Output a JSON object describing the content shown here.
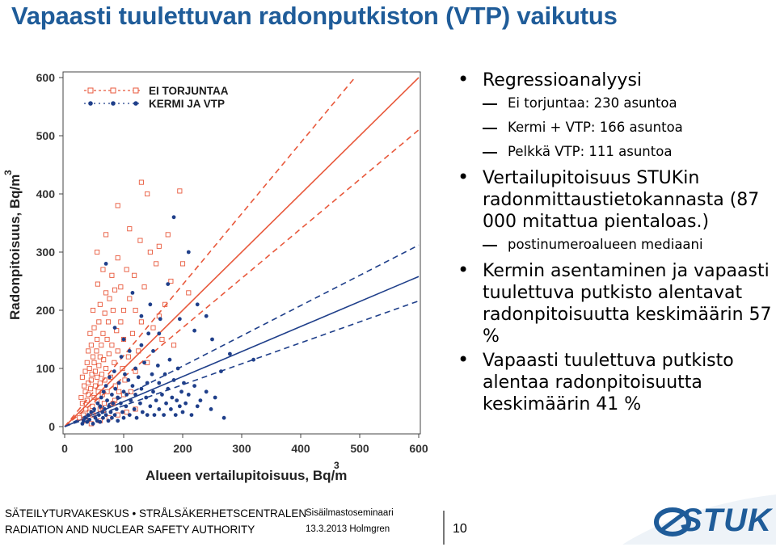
{
  "slide": {
    "title": "Vapaasti tuulettuvan radonputkiston (VTP) vaikutus"
  },
  "bullets": [
    {
      "level": 1,
      "text": "Regressioanalyysi"
    },
    {
      "level": 2,
      "text": "Ei torjuntaa: 230 asuntoa"
    },
    {
      "level": 2,
      "text": "Kermi + VTP: 166 asuntoa"
    },
    {
      "level": 2,
      "text": "Pelkkä VTP: 111 asuntoa"
    },
    {
      "level": 1,
      "text": "Vertailupitoisuus STUKin radonmittaustietokannasta (87 000 mitattua pientaloas.)"
    },
    {
      "level": 2,
      "text": "postinumeroalueen mediaani"
    },
    {
      "level": 1,
      "text": "Kermin asentaminen ja vapaasti tuulettuva putkisto alentavat radonpitoisuutta keskimäärin 57 %"
    },
    {
      "level": 1,
      "text": "Vapaasti tuulettuva putkisto alentaa radonpitoisuutta keskimäärin 41 %"
    }
  ],
  "footer": {
    "org_line1": "SÄTEILYTURVAKESKUS • STRÅLSÄKERHETSCENTRALEN",
    "org_line2": "RADIATION AND NUCLEAR SAFETY AUTHORITY",
    "event_line1": "Sisäilmastoseminaari",
    "event_line2": "13.3.2013 Holmgren",
    "page_number": "10",
    "logo_text": "STUK"
  },
  "colors": {
    "title": "#1f5c99",
    "series_ei_torjuntaa": "#e8593c",
    "series_kermi_vtp": "#1f3f8a",
    "logo": "#1f5c99"
  },
  "icons": {
    "logo": "stuk-logo-icon"
  },
  "chart_data": {
    "type": "scatter",
    "xlabel": "Alueen vertailupitoisuus, Bq/m",
    "xlabel_sup": "3",
    "ylabel": "Radonpitoisuus, Bq/m",
    "ylabel_sup": "3",
    "xlim": [
      0,
      600
    ],
    "ylim": [
      0,
      600
    ],
    "xticks": [
      "0",
      "100",
      "200",
      "300",
      "400",
      "500",
      "600"
    ],
    "yticks": [
      "0",
      "100",
      "200",
      "300",
      "400",
      "500",
      "600"
    ],
    "legend_position": "top-left",
    "series": [
      {
        "name": "EI TORJUNTAA",
        "marker": "square",
        "color": "#e8593c",
        "regression": {
          "slope": 1.0,
          "intercept": 0,
          "ci_upper_slope": 1.22,
          "ci_lower_slope": 0.85
        },
        "points": [
          [
            25,
            15
          ],
          [
            28,
            50
          ],
          [
            30,
            40
          ],
          [
            30,
            85
          ],
          [
            32,
            20
          ],
          [
            33,
            70
          ],
          [
            35,
            60
          ],
          [
            35,
            95
          ],
          [
            36,
            30
          ],
          [
            38,
            45
          ],
          [
            38,
            110
          ],
          [
            40,
            75
          ],
          [
            40,
            130
          ],
          [
            40,
            55
          ],
          [
            42,
            25
          ],
          [
            42,
            100
          ],
          [
            43,
            160
          ],
          [
            44,
            65
          ],
          [
            45,
            80
          ],
          [
            45,
            140
          ],
          [
            46,
            90
          ],
          [
            47,
            35
          ],
          [
            48,
            120
          ],
          [
            48,
            200
          ],
          [
            50,
            50
          ],
          [
            50,
            110
          ],
          [
            50,
            170
          ],
          [
            52,
            70
          ],
          [
            52,
            95
          ],
          [
            54,
            130
          ],
          [
            55,
            45
          ],
          [
            55,
            85
          ],
          [
            55,
            150
          ],
          [
            56,
            245
          ],
          [
            57,
            60
          ],
          [
            58,
            105
          ],
          [
            58,
            180
          ],
          [
            60,
            30
          ],
          [
            60,
            75
          ],
          [
            60,
            120
          ],
          [
            60,
            210
          ],
          [
            62,
            140
          ],
          [
            63,
            90
          ],
          [
            64,
            55
          ],
          [
            65,
            160
          ],
          [
            65,
            270
          ],
          [
            66,
            115
          ],
          [
            67,
            40
          ],
          [
            68,
            195
          ],
          [
            68,
            80
          ],
          [
            70,
            230
          ],
          [
            70,
            100
          ],
          [
            72,
            60
          ],
          [
            72,
            150
          ],
          [
            74,
            180
          ],
          [
            75,
            125
          ],
          [
            76,
            220
          ],
          [
            78,
            85
          ],
          [
            80,
            140
          ],
          [
            80,
            260
          ],
          [
            82,
            40
          ],
          [
            82,
            200
          ],
          [
            84,
            110
          ],
          [
            85,
            235
          ],
          [
            86,
            70
          ],
          [
            88,
            165
          ],
          [
            90,
            130
          ],
          [
            90,
            290
          ],
          [
            92,
            60
          ],
          [
            95,
            240
          ],
          [
            95,
            180
          ],
          [
            98,
            100
          ],
          [
            100,
            150
          ],
          [
            100,
            200
          ],
          [
            102,
            80
          ],
          [
            105,
            270
          ],
          [
            108,
            120
          ],
          [
            110,
            220
          ],
          [
            112,
            60
          ],
          [
            115,
            160
          ],
          [
            118,
            260
          ],
          [
            120,
            200
          ],
          [
            120,
            95
          ],
          [
            125,
            130
          ],
          [
            128,
            320
          ],
          [
            130,
            180
          ],
          [
            135,
            240
          ],
          [
            140,
            110
          ],
          [
            140,
            400
          ],
          [
            145,
            300
          ],
          [
            150,
            170
          ],
          [
            155,
            280
          ],
          [
            160,
            190
          ],
          [
            165,
            150
          ],
          [
            170,
            210
          ],
          [
            175,
            330
          ],
          [
            180,
            250
          ],
          [
            185,
            140
          ],
          [
            195,
            405
          ],
          [
            200,
            280
          ],
          [
            210,
            230
          ],
          [
            130,
            420
          ],
          [
            90,
            380
          ],
          [
            110,
            340
          ],
          [
            70,
            330
          ],
          [
            55,
            300
          ],
          [
            160,
            310
          ],
          [
            48,
            20
          ],
          [
            60,
            10
          ],
          [
            75,
            15
          ],
          [
            90,
            20
          ],
          [
            105,
            25
          ],
          [
            120,
            30
          ],
          [
            35,
            10
          ],
          [
            45,
            5
          ],
          [
            85,
            45
          ],
          [
            100,
            55
          ],
          [
            65,
            28
          ]
        ]
      },
      {
        "name": "KERMI JA VTP",
        "marker": "circle",
        "color": "#1f3f8a",
        "regression": {
          "slope": 0.43,
          "intercept": 0,
          "ci_upper_slope": 0.52,
          "ci_lower_slope": 0.36
        },
        "points": [
          [
            30,
            5
          ],
          [
            32,
            10
          ],
          [
            35,
            15
          ],
          [
            38,
            8
          ],
          [
            40,
            20
          ],
          [
            42,
            12
          ],
          [
            45,
            25
          ],
          [
            48,
            5
          ],
          [
            50,
            30
          ],
          [
            52,
            15
          ],
          [
            55,
            10
          ],
          [
            56,
            40
          ],
          [
            58,
            20
          ],
          [
            60,
            35
          ],
          [
            60,
            8
          ],
          [
            62,
            50
          ],
          [
            64,
            25
          ],
          [
            65,
            15
          ],
          [
            66,
            60
          ],
          [
            68,
            30
          ],
          [
            70,
            20
          ],
          [
            70,
            70
          ],
          [
            72,
            45
          ],
          [
            74,
            10
          ],
          [
            75,
            35
          ],
          [
            76,
            85
          ],
          [
            78,
            25
          ],
          [
            80,
            55
          ],
          [
            80,
            15
          ],
          [
            82,
            40
          ],
          [
            84,
            95
          ],
          [
            85,
            20
          ],
          [
            86,
            65
          ],
          [
            88,
            30
          ],
          [
            90,
            50
          ],
          [
            90,
            10
          ],
          [
            92,
            75
          ],
          [
            95,
            40
          ],
          [
            96,
            120
          ],
          [
            98,
            25
          ],
          [
            100,
            60
          ],
          [
            100,
            15
          ],
          [
            102,
            90
          ],
          [
            104,
            35
          ],
          [
            105,
            55
          ],
          [
            108,
            80
          ],
          [
            110,
            20
          ],
          [
            110,
            130
          ],
          [
            112,
            45
          ],
          [
            115,
            70
          ],
          [
            118,
            30
          ],
          [
            120,
            100
          ],
          [
            120,
            55
          ],
          [
            122,
            15
          ],
          [
            125,
            85
          ],
          [
            128,
            40
          ],
          [
            130,
            65
          ],
          [
            130,
            140
          ],
          [
            132,
            25
          ],
          [
            135,
            110
          ],
          [
            138,
            50
          ],
          [
            140,
            75
          ],
          [
            140,
            20
          ],
          [
            142,
            160
          ],
          [
            145,
            35
          ],
          [
            148,
            90
          ],
          [
            150,
            60
          ],
          [
            150,
            130
          ],
          [
            152,
            20
          ],
          [
            155,
            45
          ],
          [
            158,
            105
          ],
          [
            160,
            30
          ],
          [
            160,
            75
          ],
          [
            162,
            185
          ],
          [
            165,
            55
          ],
          [
            168,
            20
          ],
          [
            170,
            90
          ],
          [
            172,
            40
          ],
          [
            175,
            65
          ],
          [
            178,
            115
          ],
          [
            180,
            30
          ],
          [
            182,
            50
          ],
          [
            185,
            80
          ],
          [
            188,
            20
          ],
          [
            190,
            45
          ],
          [
            192,
            100
          ],
          [
            195,
            35
          ],
          [
            198,
            60
          ],
          [
            200,
            25
          ],
          [
            202,
            75
          ],
          [
            205,
            40
          ],
          [
            210,
            55
          ],
          [
            215,
            20
          ],
          [
            220,
            70
          ],
          [
            225,
            35
          ],
          [
            230,
            45
          ],
          [
            240,
            60
          ],
          [
            248,
            30
          ],
          [
            255,
            50
          ],
          [
            265,
            95
          ],
          [
            270,
            15
          ],
          [
            280,
            125
          ],
          [
            320,
            115
          ],
          [
            225,
            210
          ],
          [
            210,
            300
          ],
          [
            220,
            165
          ],
          [
            185,
            360
          ],
          [
            195,
            185
          ],
          [
            70,
            280
          ],
          [
            115,
            230
          ],
          [
            130,
            190
          ],
          [
            145,
            210
          ],
          [
            100,
            150
          ],
          [
            85,
            170
          ],
          [
            250,
            150
          ],
          [
            160,
            160
          ],
          [
            240,
            190
          ],
          [
            175,
            245
          ]
        ]
      }
    ]
  }
}
